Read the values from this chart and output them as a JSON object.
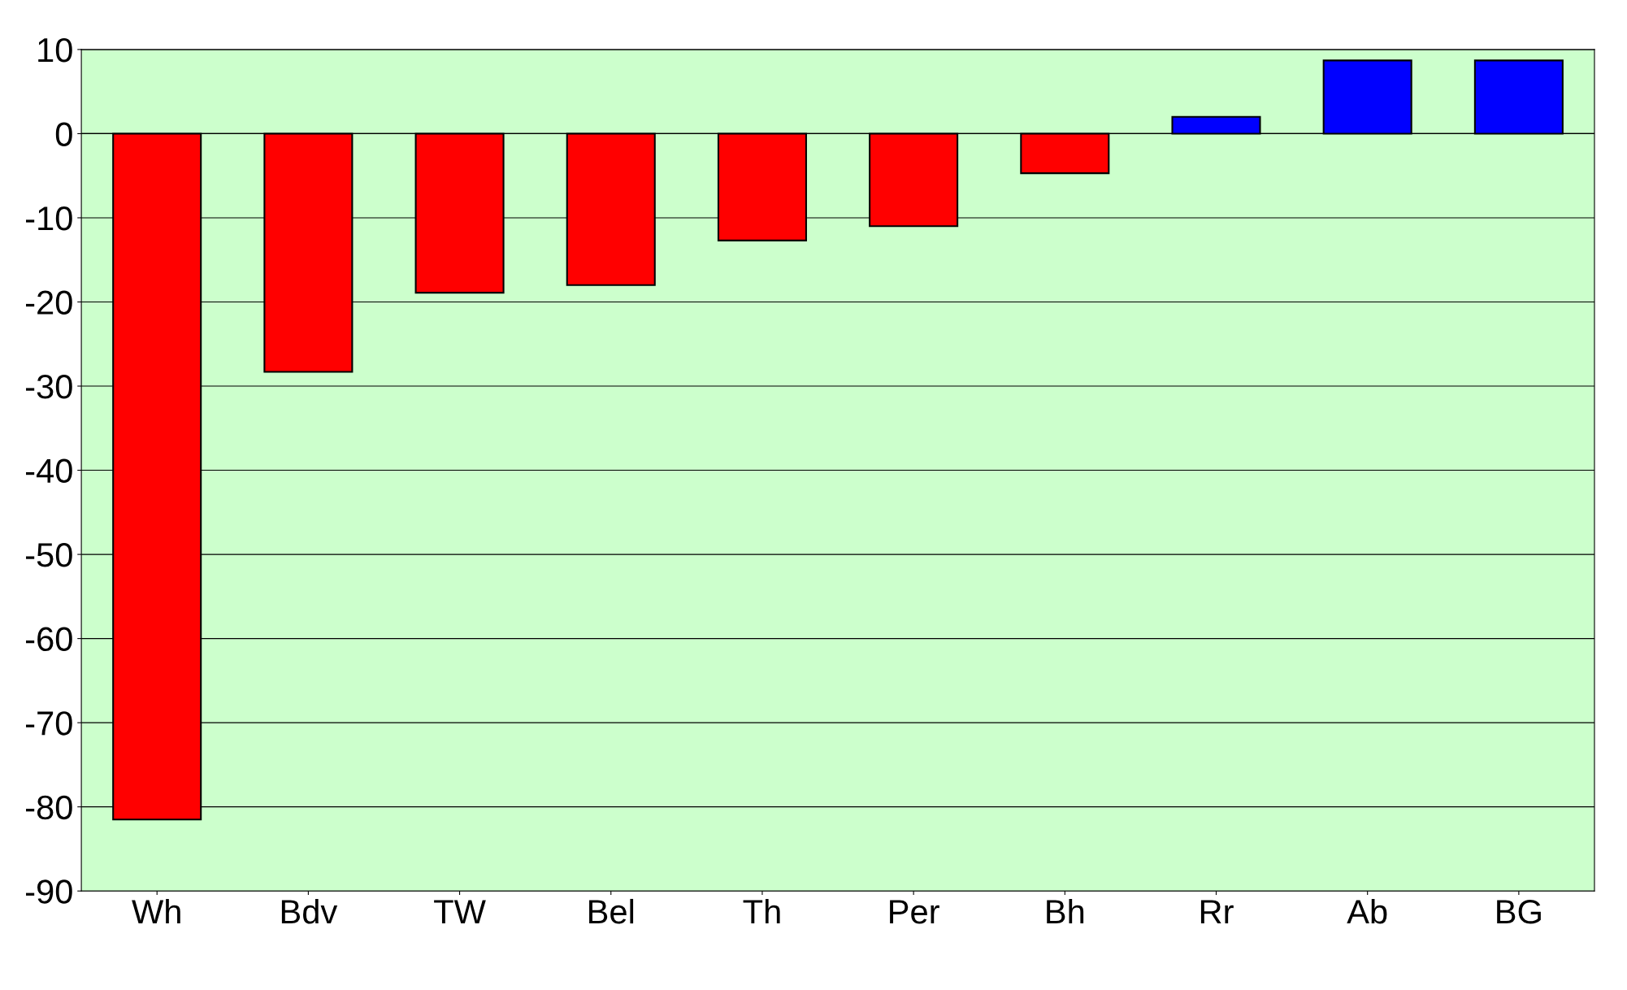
{
  "chart_data": {
    "type": "bar",
    "categories": [
      "Wh",
      "Bdv",
      "TW",
      "Bel",
      "Th",
      "Per",
      "Bh",
      "Rr",
      "Ab",
      "BG"
    ],
    "values": [
      -81.5,
      -28.3,
      -18.9,
      -18,
      -12.7,
      -11,
      -4.7,
      2,
      8.7,
      8.7
    ],
    "colors": [
      "#ff0000",
      "#ff0000",
      "#ff0000",
      "#ff0000",
      "#ff0000",
      "#ff0000",
      "#ff0000",
      "#0000ff",
      "#0000ff",
      "#0000ff"
    ],
    "ylim": [
      -90,
      10
    ],
    "yticks": [
      -90,
      -80,
      -70,
      -60,
      -50,
      -40,
      -30,
      -20,
      -10,
      0,
      10
    ],
    "grid": "y"
  }
}
